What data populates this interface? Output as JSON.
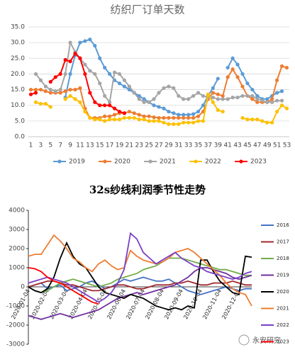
{
  "chart_data": [
    {
      "type": "line",
      "title": "纺织厂订单天数",
      "markers": true,
      "grid": true,
      "legend": "bottom",
      "categories": [
        1,
        null,
        3,
        null,
        5,
        null,
        7,
        null,
        9,
        null,
        11,
        null,
        13,
        null,
        15,
        null,
        17,
        null,
        19,
        null,
        21,
        null,
        23,
        null,
        25,
        null,
        27,
        null,
        29,
        null,
        31,
        null,
        33,
        null,
        35,
        null,
        37,
        null,
        39,
        null,
        41,
        null,
        43,
        null,
        45,
        null,
        47,
        null,
        49,
        null,
        51,
        null,
        53
      ],
      "ylim": [
        0,
        35
      ],
      "yticks": [
        {
          "value": 0,
          "label": "0.0"
        },
        {
          "value": 5,
          "label": "5.0"
        },
        {
          "value": 10,
          "label": "10.0"
        },
        {
          "value": 15,
          "label": "15.0"
        },
        {
          "value": 20,
          "label": "20.0"
        },
        {
          "value": 25,
          "label": "25.0"
        },
        {
          "value": 30,
          "label": "30.0"
        },
        {
          "value": 35,
          "label": "35.0"
        }
      ],
      "series": [
        {
          "name": "2019",
          "color": "#5b9bd5",
          "values": [
            null,
            null,
            null,
            null,
            null,
            null,
            null,
            12.5,
            20,
            26,
            30,
            30.5,
            31,
            29,
            25,
            22,
            20,
            18,
            17,
            16,
            15,
            14,
            13,
            12,
            11,
            10,
            9.5,
            9,
            8,
            7.5,
            7,
            7,
            7,
            7.2,
            8,
            10,
            13,
            15.5,
            18.5,
            null,
            22,
            25,
            23,
            20,
            17,
            15,
            13,
            12,
            12,
            13,
            14,
            14.5,
            null
          ]
        },
        {
          "name": "2020",
          "color": "#ed7d31",
          "values": [
            15,
            15,
            15,
            14.5,
            14,
            14,
            14,
            14.5,
            15,
            15,
            15.5,
            9,
            6,
            6,
            6,
            6.5,
            6.5,
            7,
            7.5,
            7.5,
            8,
            7.5,
            7,
            6.5,
            6.5,
            6.2,
            6,
            6,
            6,
            6,
            6,
            6,
            6,
            6,
            6.5,
            8,
            12,
            14,
            13.5,
            13,
            19,
            21.5,
            19,
            16,
            13,
            12,
            11,
            11,
            11,
            12,
            18,
            22.5,
            22
          ]
        },
        {
          "name": "2021",
          "color": "#a5a5a5",
          "values": [
            null,
            20,
            18,
            16,
            15,
            14.5,
            15,
            20,
            30,
            27,
            25,
            23,
            21,
            20,
            17,
            13,
            11,
            20.5,
            20,
            18,
            16,
            14,
            12,
            11,
            11,
            12,
            14,
            15.5,
            16,
            15.5,
            13,
            12,
            12,
            13,
            14,
            13,
            12.5,
            12.5,
            12,
            12,
            12,
            12.5,
            12.5,
            13,
            13,
            13,
            12,
            11.5,
            11,
            11,
            11.5,
            11.5,
            null
          ]
        },
        {
          "name": "2022",
          "color": "#ffc000",
          "values": [
            null,
            11,
            10.5,
            10.5,
            9.5,
            null,
            null,
            12,
            13,
            12,
            11,
            8,
            6,
            5.5,
            5.5,
            5,
            5.5,
            5.5,
            5.5,
            6,
            6,
            6,
            5.5,
            5.5,
            5,
            5,
            5,
            4.5,
            4,
            4,
            4,
            4.5,
            4.5,
            4.5,
            5,
            5,
            13.5,
            11,
            8.5,
            8,
            null,
            null,
            null,
            6,
            5.5,
            5.5,
            5.5,
            5,
            4.5,
            4.5,
            8,
            10,
            9
          ]
        },
        {
          "name": "2023",
          "color": "#ff0000",
          "values": [
            13.5,
            14,
            null,
            null,
            17.5,
            19,
            20,
            24.5,
            24,
            26.5,
            25,
            20,
            14,
            11,
            10,
            10,
            10,
            9,
            8,
            7.5,
            null,
            null,
            null,
            null,
            null,
            null,
            null,
            null,
            null,
            null,
            null,
            null,
            null,
            null,
            null,
            null,
            null,
            null,
            null,
            null,
            null,
            null,
            null,
            null,
            null,
            null,
            null,
            null,
            null,
            null,
            null,
            null,
            null
          ]
        }
      ]
    },
    {
      "type": "line",
      "title": "32s纱线利润季节性走势",
      "markers": false,
      "grid": false,
      "legend": "right",
      "categories": [
        "2020-01-04",
        null,
        null,
        "2020-02-04",
        null,
        null,
        "2020-03-04",
        null,
        null,
        "2020-04-04",
        null,
        null,
        "2020-05-04",
        null,
        null,
        "2020-06-04",
        null,
        null,
        "2020-07-04",
        null,
        null,
        "2020-08-04",
        null,
        null,
        "2020-09-04",
        null,
        null,
        "2020-10-04",
        null,
        null,
        "2020-11-04",
        null,
        null,
        "2020-12-04",
        null,
        null
      ],
      "ylim": [
        -3000,
        4000
      ],
      "yticks": [
        -3000,
        -2000,
        -1000,
        0,
        1000,
        2000,
        3000,
        4000
      ],
      "series": [
        {
          "name": "2016",
          "color": "#4472c4",
          "values": [
            0,
            100,
            200,
            -100,
            0,
            100,
            -200,
            -100,
            0,
            200,
            300,
            100,
            -100,
            0,
            200,
            400,
            300,
            400,
            500,
            400,
            300,
            300,
            400,
            200,
            0,
            -200,
            -300,
            -400,
            -300,
            -200,
            -100,
            0,
            -100,
            -200,
            -100,
            -100
          ]
        },
        {
          "name": "2017",
          "color": "#a0282d",
          "values": [
            0,
            100,
            200,
            300,
            300,
            200,
            100,
            100,
            0,
            -100,
            -200,
            -200,
            -100,
            0,
            100,
            100,
            0,
            -100,
            -100,
            0,
            100,
            100,
            100,
            200,
            200,
            300,
            200,
            100,
            100,
            200,
            200,
            200,
            300,
            200,
            100,
            100
          ]
        },
        {
          "name": "2018",
          "color": "#70ad47",
          "values": [
            0,
            -200,
            -300,
            -200,
            0,
            200,
            300,
            400,
            300,
            200,
            100,
            0,
            100,
            200,
            400,
            500,
            600,
            700,
            900,
            1000,
            1100,
            1300,
            1500,
            1500,
            1500,
            1400,
            1300,
            1200,
            1100,
            1000,
            900,
            900,
            800,
            700,
            600,
            600
          ]
        },
        {
          "name": "2019",
          "color": "#7030a0",
          "values": [
            -1500,
            -1600,
            -1700,
            -1600,
            -1500,
            -1400,
            -1500,
            -1600,
            -1500,
            -1400,
            -1300,
            -1200,
            -1000,
            -800,
            -600,
            -500,
            -400,
            -300,
            -400,
            -300,
            -200,
            -100,
            0,
            100,
            300,
            500,
            800,
            1000,
            1000,
            900,
            800,
            700,
            500,
            400,
            500,
            600
          ]
        },
        {
          "name": "2020",
          "color": "#000000",
          "values": [
            0,
            -200,
            -300,
            -100,
            500,
            1500,
            2300,
            1600,
            1200,
            1000,
            500,
            0,
            -300,
            -400,
            -500,
            -600,
            -400,
            -500,
            -600,
            -800,
            -1000,
            -1100,
            -1200,
            -1100,
            -1200,
            -1000,
            -1100,
            1400,
            1400,
            800,
            300,
            0,
            -300,
            -400,
            1600,
            1550
          ]
        },
        {
          "name": "2021",
          "color": "#ed7d31",
          "values": [
            1600,
            1700,
            1700,
            2200,
            2700,
            2400,
            2000,
            1500,
            1300,
            1000,
            800,
            1200,
            1400,
            1100,
            900,
            1000,
            1900,
            1600,
            1400,
            1300,
            1200,
            1300,
            1500,
            1800,
            1900,
            2000,
            1800,
            1500,
            1200,
            900,
            600,
            200,
            -100,
            -300,
            -400,
            -1000
          ]
        },
        {
          "name": "2022",
          "color": "#7b3fc4",
          "values": [
            200,
            300,
            400,
            500,
            400,
            300,
            200,
            0,
            -200,
            -400,
            -600,
            -800,
            -600,
            -300,
            200,
            900,
            2800,
            2500,
            1800,
            1500,
            1200,
            1400,
            1600,
            1800,
            1500,
            1300,
            1100,
            1000,
            800,
            700,
            600,
            500,
            400,
            500,
            700,
            800
          ]
        },
        {
          "name": "2023",
          "color": "#ff0000",
          "values": [
            1000,
            950,
            800,
            500,
            300,
            200,
            0,
            -200,
            -400,
            -600,
            -800,
            -900,
            null,
            null,
            null,
            null,
            null,
            null,
            null,
            null,
            null,
            null,
            null,
            null,
            null,
            null,
            null,
            null,
            null,
            null,
            null,
            null,
            null,
            null,
            null,
            null
          ]
        }
      ]
    }
  ],
  "watermark": "永安研究"
}
